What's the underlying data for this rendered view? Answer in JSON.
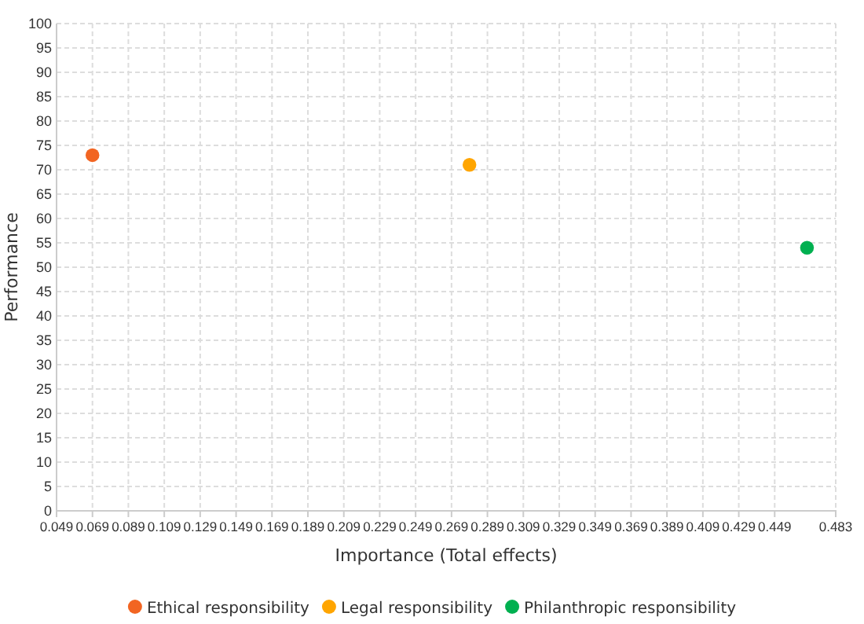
{
  "chart_data": {
    "type": "scatter",
    "xlabel": "Importance (Total effects)",
    "ylabel": "Performance",
    "xlim": [
      0.049,
      0.483
    ],
    "xticks": [
      0.049,
      0.069,
      0.089,
      0.109,
      0.129,
      0.149,
      0.169,
      0.189,
      0.209,
      0.229,
      0.249,
      0.269,
      0.289,
      0.309,
      0.329,
      0.349,
      0.369,
      0.389,
      0.409,
      0.429,
      0.449,
      0.483
    ],
    "ylim": [
      0,
      100
    ],
    "yticks": [
      0,
      5,
      10,
      15,
      20,
      25,
      30,
      35,
      40,
      45,
      50,
      55,
      60,
      65,
      70,
      75,
      80,
      85,
      90,
      95,
      100
    ],
    "grid": true,
    "legend": "bottom",
    "marker": "circle",
    "series": [
      {
        "name": "Ethical responsibility",
        "color": "#f26522",
        "x": [
          0.069
        ],
        "values": [
          73
        ]
      },
      {
        "name": "Legal responsibility",
        "color": "#ffa500",
        "x": [
          0.279
        ],
        "values": [
          71
        ]
      },
      {
        "name": "Philanthropic responsibility",
        "color": "#00b050",
        "x": [
          0.467
        ],
        "values": [
          54
        ]
      }
    ]
  }
}
